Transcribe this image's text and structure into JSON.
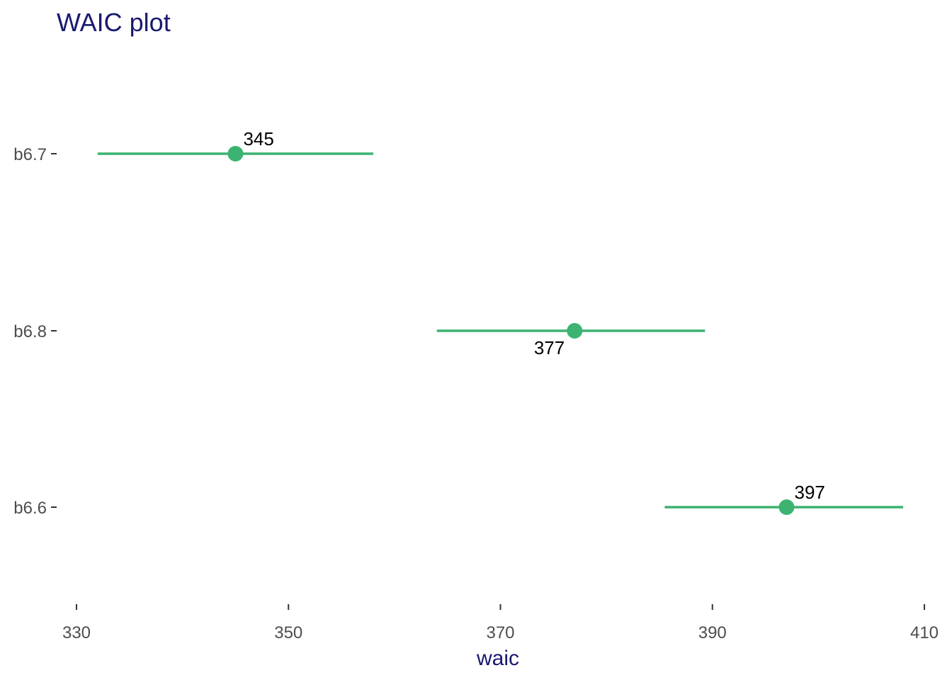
{
  "chart_data": {
    "type": "scatter",
    "title": "WAIC plot",
    "xlabel": "waic",
    "ylabel": "",
    "xlim": [
      330,
      410
    ],
    "x_ticks": [
      "330",
      "350",
      "370",
      "390",
      "410"
    ],
    "categories": [
      "b6.7",
      "b6.8",
      "b6.6"
    ],
    "points": [
      {
        "model": "b6.7",
        "waic": 345,
        "lower": 332,
        "upper": 358,
        "label": "345",
        "label_position": "above-right"
      },
      {
        "model": "b6.8",
        "waic": 377,
        "lower": 364,
        "upper": 389.3,
        "label": "377",
        "label_position": "below-left"
      },
      {
        "model": "b6.6",
        "waic": 397,
        "lower": 385.5,
        "upper": 408,
        "label": "397",
        "label_position": "above-right"
      }
    ],
    "grid": false,
    "colors": {
      "series": "#3cb371",
      "title": "#191970",
      "tick_text": "#4d4d4d",
      "label_text": "#000000"
    }
  }
}
